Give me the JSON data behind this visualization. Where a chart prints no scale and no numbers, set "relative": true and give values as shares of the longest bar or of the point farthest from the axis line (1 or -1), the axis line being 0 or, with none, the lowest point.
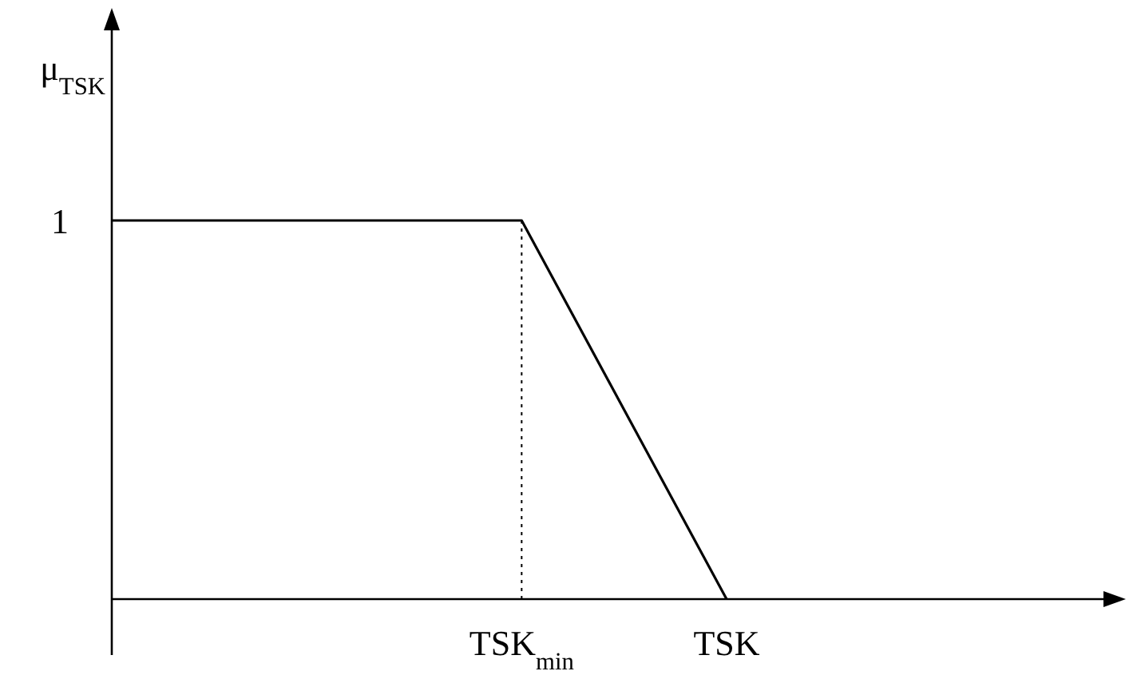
{
  "chart_data": {
    "type": "line",
    "ylabel": "μ$_{TSK}$",
    "relative": true,
    "categories": [
      null,
      null,
      "TSK$_{min}$",
      "TSK"
    ],
    "values": [
      1,
      1,
      1,
      0
    ],
    "color": "#000000",
    "annotations": [
      "1"
    ],
    "ref_lines": [
      {
        "axis": "x",
        "value": "TSK$_{min}$",
        "line_style": "dotted",
        "color": "#000000"
      }
    ],
    "marker": "none",
    "line_style": "solid"
  }
}
